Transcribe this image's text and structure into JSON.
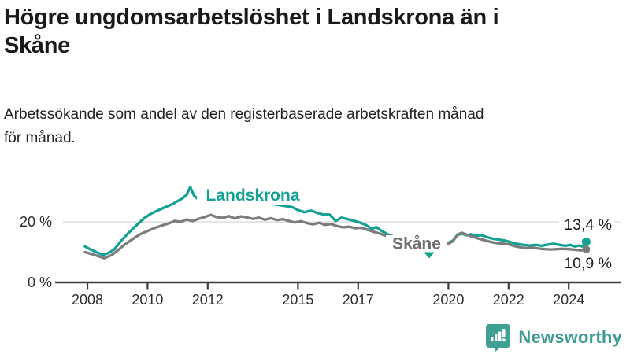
{
  "header": {
    "title_lines": [
      "Högre ungdomsarbetslöshet i Landskrona än i",
      "Skåne"
    ],
    "subtitle_lines": [
      "Arbetssökande som andel av den registerbaserade arbetskraften månad",
      "för månad."
    ]
  },
  "chart_data": {
    "type": "line",
    "unit": "percent",
    "x_axis": {
      "tick_years": [
        2008,
        2010,
        2012,
        2015,
        2017,
        2020,
        2022,
        2024
      ],
      "range": [
        2007.8,
        2024.8
      ]
    },
    "y_axis": {
      "ticks": [
        {
          "value": 0,
          "label": "0 %"
        },
        {
          "value": 20,
          "label": "20 %"
        }
      ],
      "range": [
        0,
        34
      ],
      "gridline_at": 20
    },
    "legend_position": "inline-labels",
    "grid": "single-horizontal-gridline",
    "series": [
      {
        "name": "Landskrona",
        "color": "#12a192",
        "end_label": "13,4 %",
        "end_value": 13.4,
        "points": [
          [
            2007.92,
            11.9
          ],
          [
            2008.1,
            10.9
          ],
          [
            2008.3,
            10.0
          ],
          [
            2008.5,
            9.1
          ],
          [
            2008.7,
            9.7
          ],
          [
            2008.9,
            11.0
          ],
          [
            2009.1,
            13.5
          ],
          [
            2009.35,
            16.2
          ],
          [
            2009.6,
            18.6
          ],
          [
            2009.9,
            21.3
          ],
          [
            2010.1,
            22.6
          ],
          [
            2010.3,
            23.6
          ],
          [
            2010.5,
            24.5
          ],
          [
            2010.7,
            25.3
          ],
          [
            2010.85,
            26.0
          ],
          [
            2011.0,
            26.9
          ],
          [
            2011.15,
            27.7
          ],
          [
            2011.3,
            29.0
          ],
          [
            2011.42,
            31.5
          ],
          [
            2011.55,
            28.6
          ],
          [
            2011.7,
            27.3
          ],
          [
            2011.85,
            28.0
          ],
          [
            2012.0,
            28.7
          ],
          [
            2012.15,
            28.1
          ],
          [
            2012.3,
            27.7
          ],
          [
            2012.5,
            28.3
          ],
          [
            2012.7,
            27.5
          ],
          [
            2012.9,
            27.9
          ],
          [
            2013.1,
            27.2
          ],
          [
            2013.3,
            27.7
          ],
          [
            2013.5,
            26.9
          ],
          [
            2013.7,
            26.4
          ],
          [
            2013.9,
            26.7
          ],
          [
            2014.1,
            26.0
          ],
          [
            2014.35,
            25.6
          ],
          [
            2014.6,
            25.2
          ],
          [
            2014.8,
            24.9
          ],
          [
            2015.0,
            23.9
          ],
          [
            2015.2,
            23.2
          ],
          [
            2015.45,
            23.7
          ],
          [
            2015.65,
            22.9
          ],
          [
            2015.85,
            22.4
          ],
          [
            2016.05,
            22.4
          ],
          [
            2016.25,
            20.3
          ],
          [
            2016.45,
            21.4
          ],
          [
            2016.65,
            20.9
          ],
          [
            2016.85,
            20.4
          ],
          [
            2017.05,
            19.8
          ],
          [
            2017.25,
            19.0
          ],
          [
            2017.45,
            17.7
          ],
          [
            2017.6,
            18.3
          ],
          [
            2017.8,
            16.9
          ],
          [
            2018.0,
            15.8
          ],
          [
            2018.2,
            15.0
          ],
          [
            2018.45,
            14.3
          ],
          [
            2018.7,
            13.7
          ],
          [
            2019.0,
            13.1
          ],
          [
            2019.2,
            12.5
          ],
          [
            2019.4,
            12.0
          ],
          [
            2019.6,
            12.2
          ],
          [
            2019.8,
            12.6
          ],
          [
            2020.0,
            13.1
          ],
          [
            2020.15,
            13.8
          ],
          [
            2020.3,
            15.7
          ],
          [
            2020.45,
            16.1
          ],
          [
            2020.6,
            15.6
          ],
          [
            2020.75,
            15.9
          ],
          [
            2020.9,
            15.4
          ],
          [
            2021.1,
            15.6
          ],
          [
            2021.3,
            14.9
          ],
          [
            2021.5,
            14.4
          ],
          [
            2021.7,
            14.1
          ],
          [
            2021.9,
            13.8
          ],
          [
            2022.1,
            13.2
          ],
          [
            2022.3,
            12.7
          ],
          [
            2022.5,
            12.4
          ],
          [
            2022.7,
            12.2
          ],
          [
            2022.9,
            12.4
          ],
          [
            2023.1,
            12.1
          ],
          [
            2023.3,
            12.5
          ],
          [
            2023.5,
            12.8
          ],
          [
            2023.7,
            12.4
          ],
          [
            2023.9,
            12.1
          ],
          [
            2024.05,
            12.4
          ],
          [
            2024.2,
            11.9
          ],
          [
            2024.35,
            12.2
          ],
          [
            2024.5,
            11.8
          ],
          [
            2024.58,
            13.4
          ]
        ]
      },
      {
        "name": "Skåne",
        "color": "#7c7c7c",
        "end_label": "10,9 %",
        "end_value": 10.9,
        "points": [
          [
            2007.92,
            10.0
          ],
          [
            2008.1,
            9.5
          ],
          [
            2008.3,
            8.9
          ],
          [
            2008.55,
            8.0
          ],
          [
            2008.8,
            9.0
          ],
          [
            2009.0,
            10.5
          ],
          [
            2009.25,
            12.6
          ],
          [
            2009.5,
            14.3
          ],
          [
            2009.75,
            15.9
          ],
          [
            2010.0,
            17.0
          ],
          [
            2010.25,
            18.0
          ],
          [
            2010.5,
            18.9
          ],
          [
            2010.7,
            19.5
          ],
          [
            2010.9,
            20.3
          ],
          [
            2011.1,
            20.0
          ],
          [
            2011.3,
            20.8
          ],
          [
            2011.5,
            20.3
          ],
          [
            2011.7,
            21.0
          ],
          [
            2011.9,
            21.6
          ],
          [
            2012.1,
            22.3
          ],
          [
            2012.3,
            21.6
          ],
          [
            2012.5,
            21.3
          ],
          [
            2012.7,
            21.9
          ],
          [
            2012.9,
            21.1
          ],
          [
            2013.1,
            21.8
          ],
          [
            2013.3,
            21.5
          ],
          [
            2013.5,
            21.0
          ],
          [
            2013.7,
            21.4
          ],
          [
            2013.9,
            20.7
          ],
          [
            2014.1,
            21.2
          ],
          [
            2014.3,
            20.6
          ],
          [
            2014.5,
            20.9
          ],
          [
            2014.7,
            20.3
          ],
          [
            2014.9,
            19.8
          ],
          [
            2015.1,
            20.2
          ],
          [
            2015.3,
            19.6
          ],
          [
            2015.5,
            19.2
          ],
          [
            2015.7,
            19.7
          ],
          [
            2015.9,
            19.0
          ],
          [
            2016.1,
            19.3
          ],
          [
            2016.3,
            18.6
          ],
          [
            2016.5,
            18.2
          ],
          [
            2016.7,
            18.4
          ],
          [
            2016.9,
            17.9
          ],
          [
            2017.1,
            18.1
          ],
          [
            2017.3,
            17.4
          ],
          [
            2017.5,
            16.8
          ],
          [
            2017.7,
            16.2
          ],
          [
            2017.9,
            15.5
          ],
          [
            2018.1,
            14.8
          ],
          [
            2018.35,
            14.0
          ],
          [
            2018.6,
            13.4
          ],
          [
            2018.85,
            12.9
          ],
          [
            2019.1,
            12.5
          ],
          [
            2019.35,
            12.1
          ],
          [
            2019.6,
            12.0
          ],
          [
            2019.8,
            12.3
          ],
          [
            2020.0,
            12.8
          ],
          [
            2020.15,
            13.6
          ],
          [
            2020.3,
            15.8
          ],
          [
            2020.45,
            16.4
          ],
          [
            2020.6,
            15.8
          ],
          [
            2020.8,
            15.1
          ],
          [
            2021.0,
            14.5
          ],
          [
            2021.2,
            13.9
          ],
          [
            2021.4,
            13.4
          ],
          [
            2021.6,
            13.0
          ],
          [
            2021.8,
            12.8
          ],
          [
            2022.0,
            12.6
          ],
          [
            2022.2,
            12.0
          ],
          [
            2022.4,
            11.6
          ],
          [
            2022.6,
            11.3
          ],
          [
            2022.8,
            11.5
          ],
          [
            2023.0,
            11.2
          ],
          [
            2023.2,
            11.0
          ],
          [
            2023.4,
            10.9
          ],
          [
            2023.6,
            11.0
          ],
          [
            2023.8,
            11.1
          ],
          [
            2024.0,
            11.0
          ],
          [
            2024.2,
            10.8
          ],
          [
            2024.4,
            10.6
          ],
          [
            2024.58,
            10.9
          ]
        ]
      }
    ],
    "annotations": [
      {
        "type": "triangle-down-marker",
        "series": "Landskrona",
        "x": 2019.36,
        "color": "#12a192"
      }
    ],
    "colors": {
      "gridline": "#d9d9d9",
      "axis": "#3c3c3c",
      "tick_text": "#2d2d2d",
      "end_label_text": "#1d1d1d",
      "skane_label_text": "#6d6d6d"
    }
  },
  "footer": {
    "brand": "Newsworthy",
    "brand_color": "#3f9c92",
    "icon": "bar-chart-speech-bubble-icon",
    "icon_color": "#3fa093"
  }
}
